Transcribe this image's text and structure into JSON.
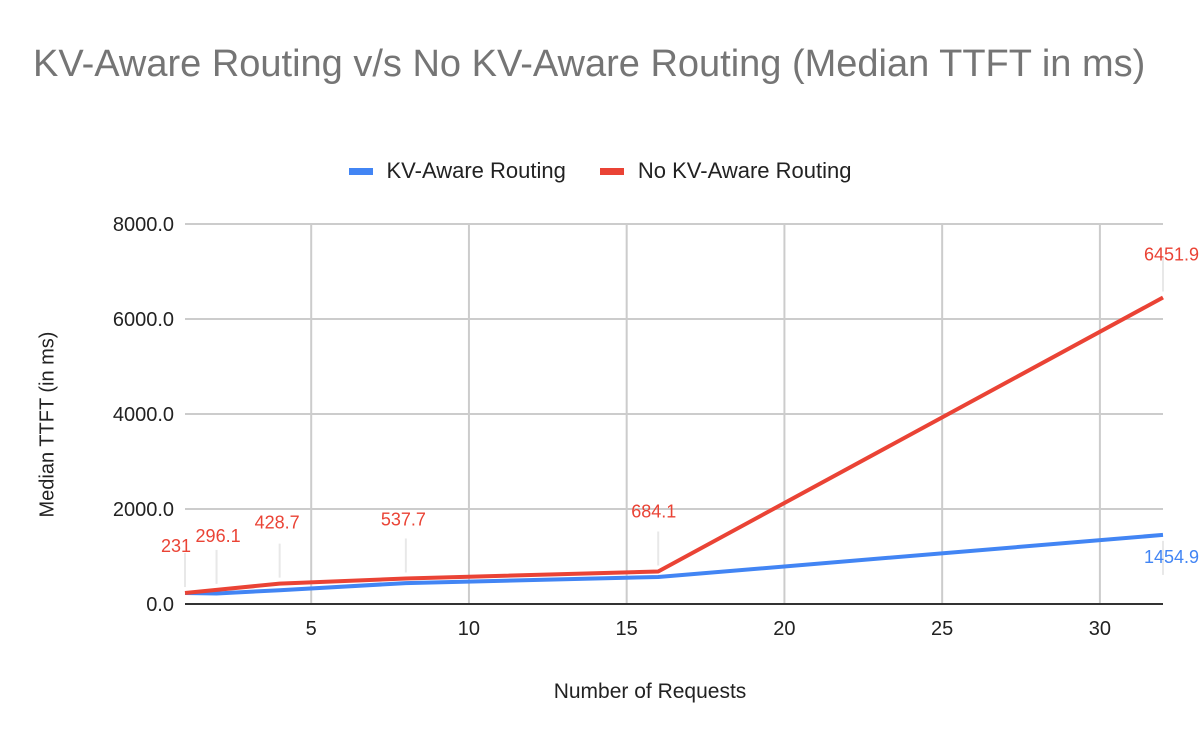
{
  "chart_data": {
    "type": "line",
    "title": "KV-Aware Routing v/s No KV-Aware Routing  (Median TTFT in ms)",
    "xlabel": "Number of Requests",
    "ylabel": "Median TTFT (in ms)",
    "x": [
      1,
      2,
      4,
      8,
      16,
      32
    ],
    "series": [
      {
        "name": "KV-Aware Routing",
        "color": "#4285f4",
        "values": [
          231,
          220,
          290,
          440,
          568,
          1454.9
        ]
      },
      {
        "name": "No KV-Aware Routing",
        "color": "#ea4335",
        "values": [
          231,
          296.1,
          428.7,
          537.7,
          684.1,
          6451.9
        ]
      }
    ],
    "data_labels": [
      {
        "series": "No KV-Aware Routing",
        "x": 1,
        "text": "231"
      },
      {
        "series": "No KV-Aware Routing",
        "x": 2,
        "text": "296.1"
      },
      {
        "series": "No KV-Aware Routing",
        "x": 4,
        "text": "428.7"
      },
      {
        "series": "No KV-Aware Routing",
        "x": 8,
        "text": "537.7"
      },
      {
        "series": "No KV-Aware Routing",
        "x": 16,
        "text": "684.1"
      },
      {
        "series": "No KV-Aware Routing",
        "x": 32,
        "text": "6451.9"
      },
      {
        "series": "KV-Aware Routing",
        "x": 32,
        "text": "1454.9"
      }
    ],
    "xticks": [
      "5",
      "10",
      "15",
      "20",
      "25",
      "30"
    ],
    "yticks": [
      "0.0",
      "2000.0",
      "4000.0",
      "6000.0",
      "8000.0"
    ],
    "xlim": [
      1,
      32
    ],
    "ylim": [
      0,
      8000
    ],
    "grid": true,
    "legend_position": "top"
  },
  "legend": [
    {
      "label": "KV-Aware Routing",
      "color": "#4285f4"
    },
    {
      "label": "No KV-Aware Routing",
      "color": "#ea4335"
    }
  ]
}
